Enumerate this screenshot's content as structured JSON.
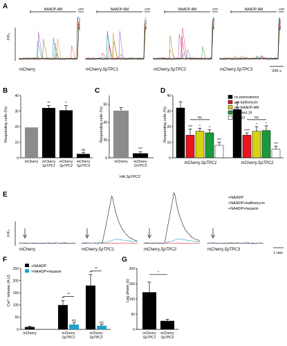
{
  "panels": {
    "A": {
      "label": "A",
      "ylabel": "F/F₀",
      "bars": [
        "NAADP-AM",
        "NAADP-AM",
        "NAADP-AM",
        "NAADP-AM"
      ],
      "atp": "ATP",
      "traces": [
        "mCherry",
        "mCherry.",
        "mCherry.",
        "mCherry."
      ],
      "traces_it": [
        "",
        "SpTPC1",
        "SpTPC2",
        "SpTPC3"
      ],
      "scale": "200 s"
    },
    "B": {
      "label": "B",
      "ylabel": "Responding cells (%)",
      "yticks": [
        "0",
        "10",
        "20",
        "30",
        "40"
      ],
      "cats": [
        {
          "l1": "mCherry",
          "l2": ""
        },
        {
          "l1": "mCherry",
          "l2": "SpTPC1"
        },
        {
          "l1": "mCherry",
          "l2": "SpTPC2"
        },
        {
          "l1": "mCherry",
          "l2": "SpTPC3"
        }
      ],
      "values": [
        19.5,
        32,
        30.5,
        2.5
      ],
      "errors": [
        0,
        1.5,
        3,
        1
      ],
      "sig": [
        "",
        "**",
        "*",
        "ns"
      ],
      "colors": [
        "#8c8c8c",
        "#000000",
        "#000000",
        "#000000"
      ]
    },
    "C": {
      "label": "C",
      "ylabel": "Responding cells (%)",
      "yticks": [
        "0",
        "20",
        "40",
        "60"
      ],
      "cats": [
        {
          "l1": "mCherry",
          "l2": ""
        },
        {
          "l1": "mCherry",
          "l2": "DrTPC3"
        }
      ],
      "values": [
        53,
        5
      ],
      "errors": [
        3.5,
        2
      ],
      "sig": [
        "",
        "***"
      ],
      "colors": [
        "#8c8c8c",
        "#000000"
      ],
      "xlabel_main": "HA.",
      "xlabel_it": "SpTPC2"
    },
    "D": {
      "label": "D",
      "ylabel": "Responding cells (%)",
      "yticks": [
        "0",
        "10",
        "20",
        "30",
        "40"
      ],
      "legend": [
        {
          "name": "no pretreatment",
          "color": "#000000"
        },
        {
          "name": "pre-bafilomycin",
          "color": "#e8141e"
        },
        {
          "name": "pre-NAADP-AM",
          "color": "#d6d214"
        },
        {
          "name": "pre-Ned-19",
          "color": "#1a9a3a"
        },
        {
          "name": "DMSO",
          "color": "#ffffff"
        }
      ],
      "groups": [
        {
          "l1": "mCherry.",
          "l2": "SpTPC1",
          "values": [
            32,
            14.5,
            17,
            16,
            8
          ],
          "errors": [
            4,
            4,
            2,
            2,
            2
          ],
          "sig": [
            "",
            "***",
            "*",
            "*",
            "***"
          ]
        },
        {
          "l1": "mCherry.",
          "l2": "SpTPC2",
          "values": [
            31,
            14.5,
            17,
            17.5,
            5.5
          ],
          "errors": [
            4.5,
            1.5,
            3,
            3,
            2
          ],
          "sig": [
            "",
            "****",
            "*",
            "*",
            "***"
          ]
        }
      ],
      "ns": [
        "NS",
        "NS"
      ]
    },
    "E": {
      "label": "E",
      "ylabel": "F/F₀",
      "legend": [
        {
          "name": "+NAADP",
          "color": "#000000"
        },
        {
          "name": "+NAADP+bafilomycin",
          "color": "#e8141e"
        },
        {
          "name": "+NAADP+heparin",
          "color": "#1ea0c8"
        }
      ],
      "traces": [
        "mCherry",
        "mCherry.",
        "mCherry.",
        "mCherry."
      ],
      "traces_it": [
        "",
        "SpTPC1",
        "SpTPC2",
        "SpTPC3"
      ],
      "scale": "1 min"
    },
    "F": {
      "label": "F",
      "ylabel": "Ca²⁺ release (A.U)",
      "yticks": [
        "0",
        "50",
        "100",
        "150",
        "200",
        "250"
      ],
      "legend": [
        {
          "name": "+NAADP",
          "color": "#000000"
        },
        {
          "name": "+NAADP+heparin",
          "color": "#1ea0c8"
        }
      ],
      "cats": [
        {
          "l1": "mCherry",
          "l2": ""
        },
        {
          "l1": "mCherry",
          "l2": "SpTPC1"
        },
        {
          "l1": "mCherry",
          "l2": "SpTPC2"
        }
      ],
      "values_naadp": [
        10,
        100,
        180
      ],
      "errors_naadp": [
        3,
        18,
        45
      ],
      "values_hep": [
        0,
        20,
        15
      ],
      "errors_hep": [
        0,
        8,
        5
      ],
      "sig_naadp": [
        "",
        "**",
        "**"
      ],
      "sig_hep": [
        "",
        "NS",
        "NS"
      ],
      "bracket_sig": "**"
    },
    "G": {
      "label": "G",
      "ylabel": "Lag phase (s)",
      "yticks": [
        "0",
        "50",
        "100",
        "150",
        "200"
      ],
      "cats": [
        {
          "l1": "mCherry",
          "l2": "SpTPC1"
        },
        {
          "l1": "mCherry",
          "l2": "SpTPC2"
        }
      ],
      "values": [
        122,
        28
      ],
      "errors": [
        33,
        5
      ],
      "bracket_sig": "*"
    }
  },
  "chart_data": [
    {
      "type": "bar",
      "panel": "B",
      "categories": [
        "mCherry",
        "mCherry SpTPC1",
        "mCherry SpTPC2",
        "mCherry SpTPC3"
      ],
      "values": [
        19.5,
        32,
        30.5,
        2.5
      ],
      "ylabel": "Responding cells (%)",
      "ylim": [
        0,
        40
      ]
    },
    {
      "type": "bar",
      "panel": "C",
      "categories": [
        "mCherry",
        "mCherry DrTPC3"
      ],
      "values": [
        53,
        5
      ],
      "ylabel": "Responding cells (%)",
      "ylim": [
        0,
        70
      ]
    },
    {
      "type": "bar",
      "panel": "D",
      "categories": [
        "mCherry.SpTPC1",
        "mCherry.SpTPC2"
      ],
      "series": [
        {
          "name": "no pretreatment",
          "values": [
            32,
            31
          ]
        },
        {
          "name": "pre-bafilomycin",
          "values": [
            14.5,
            14.5
          ]
        },
        {
          "name": "pre-NAADP-AM",
          "values": [
            17,
            17
          ]
        },
        {
          "name": "pre-Ned-19",
          "values": [
            16,
            17.5
          ]
        },
        {
          "name": "DMSO",
          "values": [
            8,
            5.5
          ]
        }
      ],
      "ylabel": "Responding cells (%)",
      "ylim": [
        0,
        40
      ]
    },
    {
      "type": "bar",
      "panel": "F",
      "categories": [
        "mCherry",
        "mCherry SpTPC1",
        "mCherry SpTPC2"
      ],
      "series": [
        {
          "name": "+NAADP",
          "values": [
            10,
            100,
            180
          ]
        },
        {
          "name": "+NAADP+heparin",
          "values": [
            0,
            20,
            15
          ]
        }
      ],
      "ylabel": "Ca2+ release (A.U)",
      "ylim": [
        0,
        250
      ]
    },
    {
      "type": "bar",
      "panel": "G",
      "categories": [
        "mCherry SpTPC1",
        "mCherry SpTPC2"
      ],
      "values": [
        122,
        28
      ],
      "ylabel": "Lag phase (s)",
      "ylim": [
        0,
        200
      ]
    }
  ]
}
